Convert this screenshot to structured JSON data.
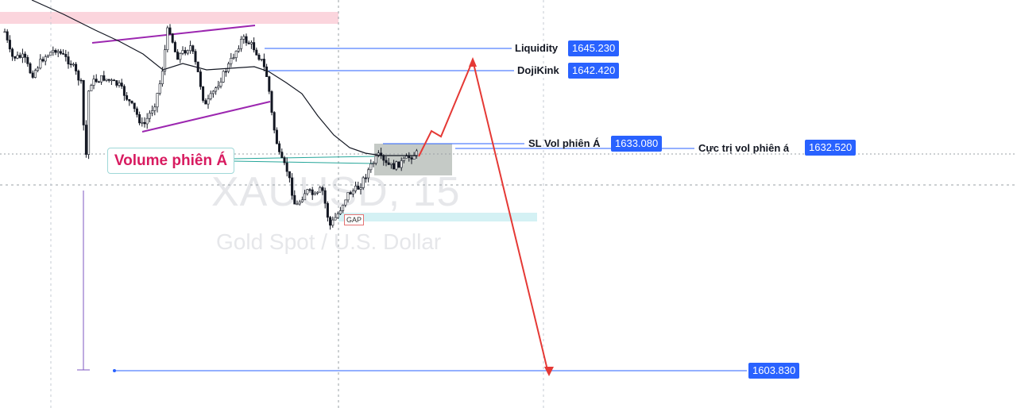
{
  "chart_data": {
    "type": "candlestick",
    "symbol": "XAUUSD",
    "timeframe": "15",
    "watermark_symbol": "XAUUSD, 15",
    "watermark_description": "Gold Spot / U.S. Dollar",
    "colors": {
      "candle": "#131722",
      "moving_average": "#131722",
      "channel": "#9c27b0",
      "projection": "#e53935",
      "price_line": "#2962ff",
      "label_bg": "#2962ff",
      "zone_pink": "#fbd5dd",
      "zone_cyan": "#d4f1f4",
      "box_gray": "#9ea6a0"
    },
    "levels": [
      {
        "name": "Liquidity",
        "price": "1645.230"
      },
      {
        "name": "DojiKink",
        "price": "1642.420"
      },
      {
        "name": "SL Vol phiên Á",
        "price": "1633.080"
      },
      {
        "name": "Cực trị vol phiên á",
        "price": "1632.520"
      },
      {
        "name": "",
        "price": "1603.830"
      }
    ],
    "annotations": {
      "volume_session": "Volume phiên Á",
      "gap": "GAP"
    }
  }
}
